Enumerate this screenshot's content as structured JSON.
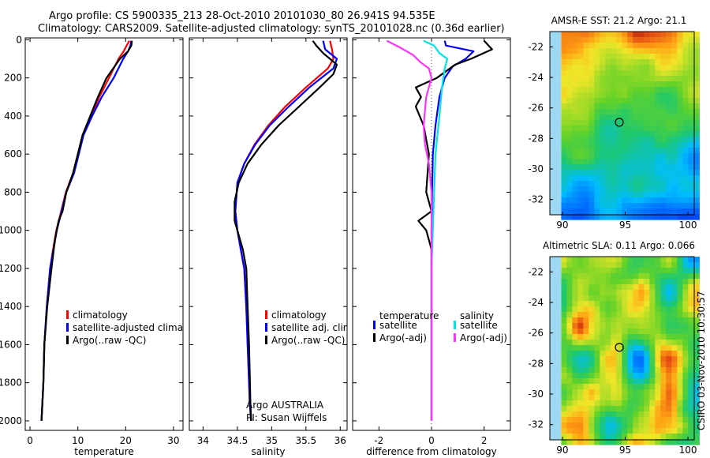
{
  "title": {
    "line1": "Argo profile: CS 5900335_213 28-Oct-2010 20101030_80 26.941S 94.535E",
    "line2": "Climatology: CARS2009. Satellite-adjusted climatology: synTS_20101028.nc (0.36d earlier)"
  },
  "credit": "CSIRO 03-Nov-2010 10:30:57",
  "colors": {
    "red": "#ff0000",
    "blue": "#0000ff",
    "black": "#000000",
    "cyan": "#00e5e5",
    "magenta": "#ff33ff"
  },
  "chart_data": [
    {
      "type": "line",
      "id": "temperature",
      "xlabel": "temperature",
      "xlim": [
        -1,
        32
      ],
      "xticks": [
        0,
        10,
        20,
        30
      ],
      "ylim": [
        2050,
        -10
      ],
      "yticks": [
        0,
        200,
        400,
        600,
        800,
        1000,
        1200,
        1400,
        1600,
        1800,
        2000
      ],
      "legend": [
        "climatology",
        "satellite-adjusted climatology",
        "Argo(..raw -QC)"
      ],
      "series": [
        {
          "name": "climatology",
          "color": "red",
          "x": [
            20.8,
            20.2,
            19.6,
            18.5,
            16.5,
            14.5,
            12.8,
            11.0,
            10.0,
            9.0,
            7.5,
            6.5,
            5.5,
            4.8,
            4.2,
            3.5,
            3.0,
            2.8,
            2.5,
            2.4
          ],
          "y": [
            5,
            30,
            60,
            100,
            200,
            300,
            400,
            500,
            600,
            700,
            800,
            900,
            1000,
            1100,
            1200,
            1400,
            1600,
            1800,
            1950,
            2000
          ]
        },
        {
          "name": "satellite-adjusted climatology",
          "color": "blue",
          "x": [
            21.2,
            21.0,
            20.5,
            19.5,
            17.5,
            15.0,
            13.0,
            11.2,
            10.2,
            9.2,
            7.6,
            6.6,
            5.6,
            4.9,
            4.2,
            3.5,
            3.0,
            2.8,
            2.5,
            2.4
          ],
          "y": [
            5,
            30,
            60,
            100,
            200,
            300,
            400,
            500,
            600,
            700,
            800,
            900,
            1000,
            1100,
            1200,
            1400,
            1600,
            1800,
            1950,
            2000
          ]
        },
        {
          "name": "Argo(..raw -QC)",
          "color": "black",
          "x": [
            21.3,
            21.2,
            20.5,
            18.8,
            16.0,
            14.2,
            12.6,
            11.0,
            10.0,
            9.0,
            7.6,
            6.8,
            6.0,
            5.2,
            4.5,
            3.6,
            3.0,
            2.8,
            2.5,
            2.4
          ],
          "y": [
            5,
            30,
            60,
            100,
            200,
            300,
            400,
            500,
            600,
            700,
            800,
            900,
            950,
            1050,
            1200,
            1400,
            1600,
            1800,
            1950,
            2000
          ]
        }
      ]
    },
    {
      "type": "line",
      "id": "salinity",
      "xlabel": "salinity",
      "xlim": [
        33.8,
        36.1
      ],
      "xticks": [
        34,
        34.5,
        35,
        35.5,
        36
      ],
      "ylim": [
        2050,
        -10
      ],
      "yticks": [
        0,
        200,
        400,
        600,
        800,
        1000,
        1200,
        1400,
        1600,
        1800,
        2000
      ],
      "legend": [
        "climatology",
        "satellite adj. clim.",
        "Argo(..raw -QC)"
      ],
      "annotation": [
        "Argo AUSTRALIA",
        "PI: Susan Wijffels"
      ],
      "series": [
        {
          "name": "climatology",
          "color": "red",
          "x": [
            35.85,
            35.88,
            35.9,
            35.82,
            35.5,
            35.2,
            34.95,
            34.75,
            34.6,
            34.5,
            34.47,
            34.5,
            34.55,
            34.6,
            34.63,
            34.65,
            34.67,
            34.68,
            34.7
          ],
          "y": [
            5,
            50,
            100,
            150,
            250,
            350,
            450,
            550,
            650,
            750,
            900,
            1000,
            1100,
            1200,
            1400,
            1600,
            1800,
            1900,
            2000
          ]
        },
        {
          "name": "satellite adj. clim.",
          "color": "blue",
          "x": [
            35.75,
            35.78,
            35.95,
            35.9,
            35.55,
            35.25,
            34.97,
            34.76,
            34.6,
            34.5,
            34.47,
            34.5,
            34.55,
            34.6,
            34.63,
            34.65,
            34.67,
            34.68,
            34.7
          ],
          "y": [
            5,
            50,
            100,
            150,
            250,
            350,
            450,
            550,
            650,
            750,
            900,
            1000,
            1100,
            1200,
            1400,
            1600,
            1800,
            1900,
            2000
          ]
        },
        {
          "name": "Argo(..raw -QC)",
          "color": "black",
          "x": [
            35.6,
            35.65,
            35.75,
            35.85,
            35.95,
            35.9,
            35.7,
            35.4,
            35.1,
            34.85,
            34.65,
            34.52,
            34.46,
            34.46,
            34.5,
            34.58,
            34.63,
            34.65,
            34.67,
            34.69,
            34.7
          ],
          "y": [
            5,
            30,
            70,
            100,
            130,
            180,
            250,
            350,
            450,
            550,
            650,
            750,
            850,
            950,
            1000,
            1100,
            1200,
            1400,
            1600,
            1900,
            2000
          ]
        }
      ]
    },
    {
      "type": "line",
      "id": "difference",
      "xlabel": "difference from climatology",
      "xlim": [
        -3,
        3
      ],
      "xticks": [
        -2,
        0,
        2
      ],
      "ylim": [
        2050,
        -10
      ],
      "yticks": [
        0,
        200,
        400,
        600,
        800,
        1000,
        1200,
        1400,
        1600,
        1800,
        2000
      ],
      "legend_titles": [
        "temperature",
        "salinity"
      ],
      "legend": [
        "satellite",
        "Argo(-adj)",
        "satellite",
        "Argo(-adj)"
      ],
      "series": [
        {
          "name": "temperature satellite",
          "color": "blue",
          "x": [
            0.5,
            0.55,
            1.6,
            1.3,
            0.8,
            0.5,
            0.3,
            0.15,
            0.05,
            0.02,
            0.0,
            0.0,
            0.0,
            0.0
          ],
          "y": [
            5,
            30,
            60,
            100,
            140,
            200,
            300,
            450,
            600,
            800,
            1000,
            1200,
            1600,
            2000
          ]
        },
        {
          "name": "temperature Argo(-adj)",
          "color": "black",
          "x": [
            2.0,
            2.3,
            1.5,
            0.9,
            0.2,
            -0.6,
            -0.4,
            -0.6,
            -0.3,
            -0.1,
            -0.2,
            0.0,
            -0.5,
            -0.2,
            0.0,
            0.0
          ],
          "y": [
            5,
            50,
            100,
            130,
            200,
            250,
            300,
            350,
            450,
            600,
            800,
            900,
            950,
            1000,
            1100,
            2000
          ]
        },
        {
          "name": "salinity satellite",
          "color": "cyan",
          "x": [
            -0.3,
            0.1,
            0.3,
            0.6,
            0.5,
            0.4,
            0.3,
            0.15,
            0.1,
            0.05,
            0.0,
            0.0,
            0.0
          ],
          "y": [
            5,
            30,
            70,
            100,
            150,
            250,
            400,
            600,
            800,
            1000,
            1200,
            1600,
            2000
          ]
        },
        {
          "name": "salinity Argo(-adj)",
          "color": "magenta",
          "x": [
            -1.7,
            -1.2,
            -0.7,
            -0.4,
            -0.1,
            0.0,
            -0.2,
            -0.3,
            -0.25,
            -0.1,
            0.0,
            0.0,
            0.0
          ],
          "y": [
            5,
            40,
            80,
            120,
            150,
            200,
            300,
            450,
            550,
            650,
            800,
            1200,
            2000
          ]
        }
      ]
    },
    {
      "type": "heatmap",
      "id": "sst",
      "title": "AMSR-E SST: 21.2 Argo: 21.1",
      "xlim": [
        89,
        100.5
      ],
      "ylim": [
        -33,
        -21
      ],
      "xticks": [
        90,
        95,
        100
      ],
      "yticks": [
        -22,
        -24,
        -26,
        -28,
        -30,
        -32
      ],
      "marker": {
        "lon": 94.535,
        "lat": -26.941
      }
    },
    {
      "type": "heatmap",
      "id": "sla",
      "title": "Altimetric SLA: 0.11 Argo: 0.066",
      "xlim": [
        89,
        100.5
      ],
      "ylim": [
        -33,
        -21
      ],
      "xticks": [
        90,
        95,
        100
      ],
      "yticks": [
        -22,
        -24,
        -26,
        -28,
        -30,
        -32
      ],
      "marker": {
        "lon": 94.535,
        "lat": -26.941
      }
    }
  ]
}
